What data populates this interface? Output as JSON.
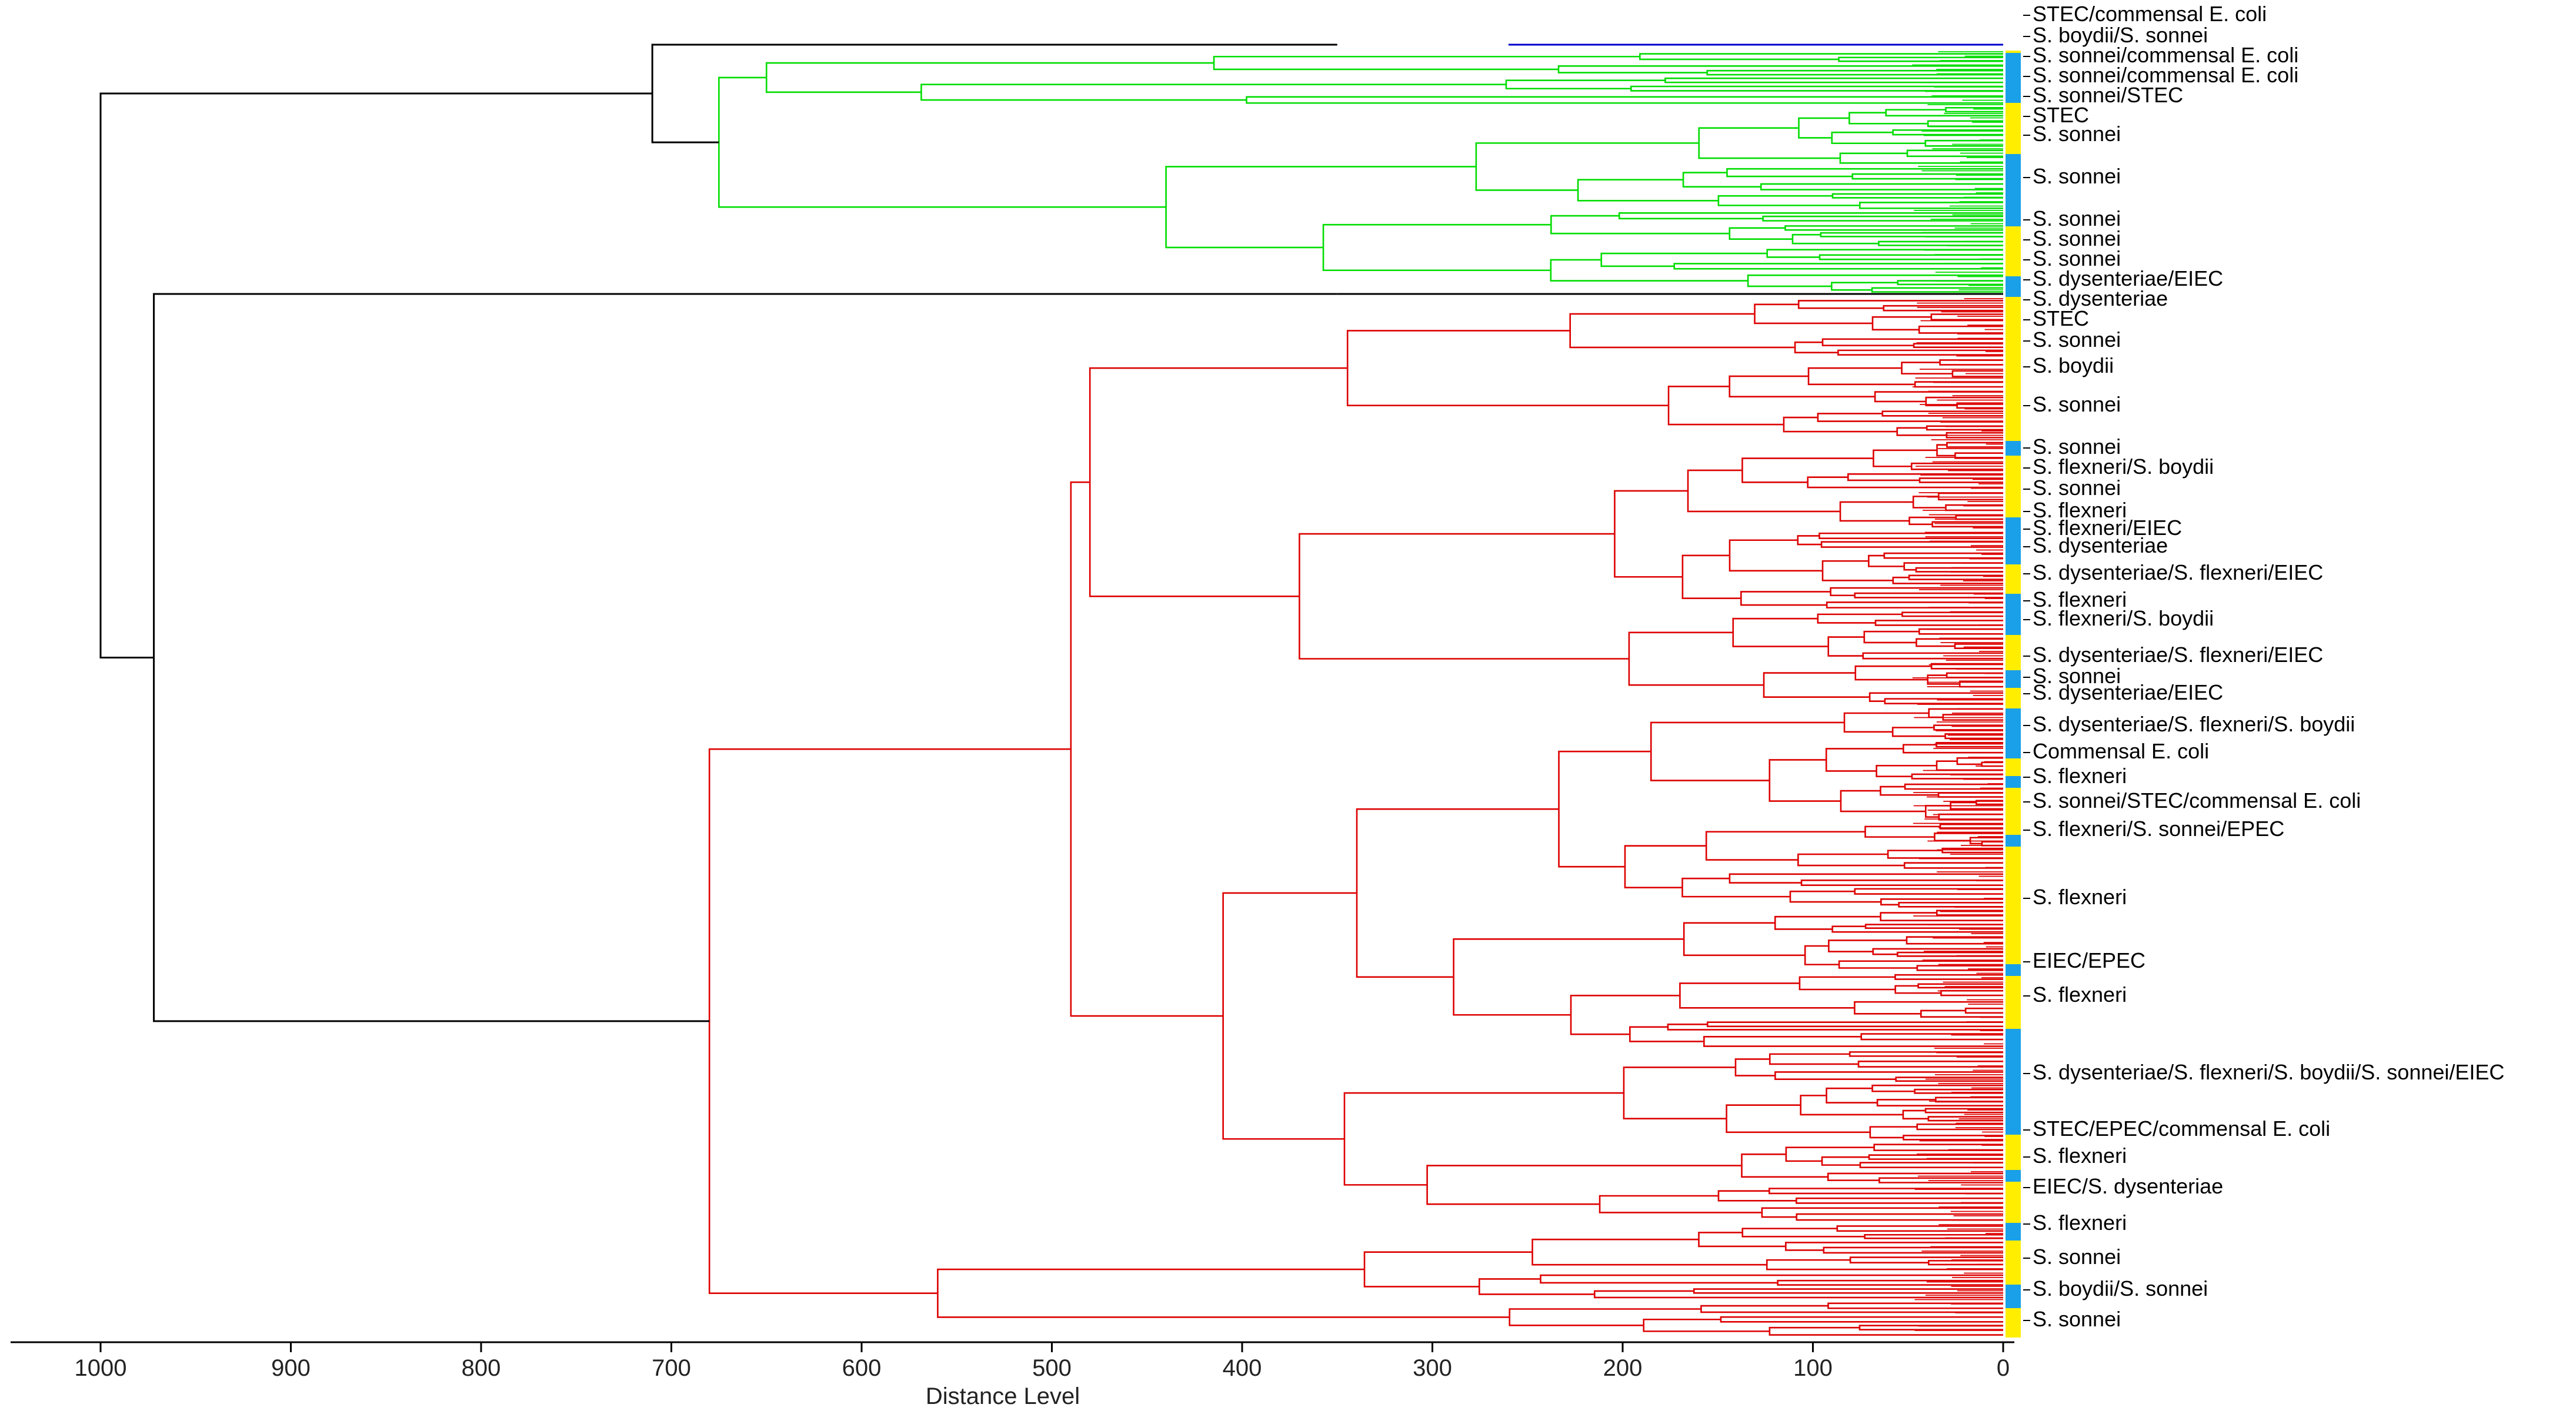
{
  "axis": {
    "title": "Distance Level",
    "ticks": [
      "1000",
      "900",
      "800",
      "700",
      "600",
      "500",
      "400",
      "300",
      "200",
      "100",
      "0"
    ],
    "tick_values": [
      1000,
      900,
      800,
      700,
      600,
      500,
      400,
      300,
      200,
      100,
      0
    ],
    "direction": "reversed"
  },
  "colors": {
    "root": "#000000",
    "cluster_green": "#00dd00",
    "cluster_red": "#dd0000",
    "cluster_blue": "#0000cc",
    "strip_yellow": "#ffee00",
    "strip_blue": "#1aa0e8"
  },
  "labels": [
    {
      "text": "STEC/commensal E. coli",
      "distance": 0
    },
    {
      "text": "S. boydii/S. sonnei",
      "distance": 0
    },
    {
      "text": "S. sonnei/commensal E. coli",
      "distance": 0
    },
    {
      "text": "S. sonnei/commensal E. coli",
      "distance": 0
    },
    {
      "text": "S. sonnei/STEC",
      "distance": 0
    },
    {
      "text": "STEC",
      "distance": 0
    },
    {
      "text": "S. sonnei",
      "distance": 0
    },
    {
      "text": "S. sonnei",
      "distance": 0
    },
    {
      "text": "S. sonnei",
      "distance": 0
    },
    {
      "text": "S. sonnei",
      "distance": 0
    },
    {
      "text": "S. sonnei",
      "distance": 0
    },
    {
      "text": "S. dysenteriae/EIEC",
      "distance": 0
    },
    {
      "text": "S. dysenteriae",
      "distance": 0
    },
    {
      "text": "STEC",
      "distance": 0
    },
    {
      "text": "S. sonnei",
      "distance": 0
    },
    {
      "text": "S. boydii",
      "distance": 0
    },
    {
      "text": "S. sonnei",
      "distance": 0
    },
    {
      "text": "S. sonnei",
      "distance": 0
    },
    {
      "text": "S. flexneri/S. boydii",
      "distance": 0
    },
    {
      "text": "S. sonnei",
      "distance": 0
    },
    {
      "text": "S. flexneri",
      "distance": 0
    },
    {
      "text": "S. flexneri/EIEC",
      "distance": 0
    },
    {
      "text": "S. dysenteriae",
      "distance": 0
    },
    {
      "text": "S. dysenteriae/S. flexneri/EIEC",
      "distance": 0
    },
    {
      "text": "S. flexneri",
      "distance": 0
    },
    {
      "text": "S. flexneri/S. boydii",
      "distance": 0
    },
    {
      "text": "S. dysenteriae/S. flexneri/EIEC",
      "distance": 0
    },
    {
      "text": "S. sonnei",
      "distance": 0
    },
    {
      "text": "S. dysenteriae/EIEC",
      "distance": 0
    },
    {
      "text": "S. dysenteriae/S. flexneri/S. boydii",
      "distance": 0
    },
    {
      "text": "Commensal E. coli",
      "distance": 0
    },
    {
      "text": "S. flexneri",
      "distance": 0
    },
    {
      "text": "S. sonnei/STEC/commensal E. coli",
      "distance": 0
    },
    {
      "text": "S. flexneri/S. sonnei/EPEC",
      "distance": 0
    },
    {
      "text": "S. flexneri",
      "distance": 0
    },
    {
      "text": "EIEC/EPEC",
      "distance": 0
    },
    {
      "text": "S. flexneri",
      "distance": 0
    },
    {
      "text": "S. dysenteriae/S. flexneri/S. boydii/S. sonnei/EIEC",
      "distance": 0
    },
    {
      "text": "STEC/EPEC/commensal E. coli",
      "distance": 0
    },
    {
      "text": "S. flexneri",
      "distance": 0
    },
    {
      "text": "EIEC/S. dysenteriae",
      "distance": 0
    },
    {
      "text": "S. flexneri",
      "distance": 0
    },
    {
      "text": "S. sonnei",
      "distance": 0
    },
    {
      "text": "S. boydii/S. sonnei",
      "distance": 0
    },
    {
      "text": "S. sonnei",
      "distance": 0
    }
  ],
  "merges": {
    "root": 1000,
    "top_cluster": 710,
    "green_cluster": 675,
    "rest": 972,
    "red_cluster": 680
  }
}
